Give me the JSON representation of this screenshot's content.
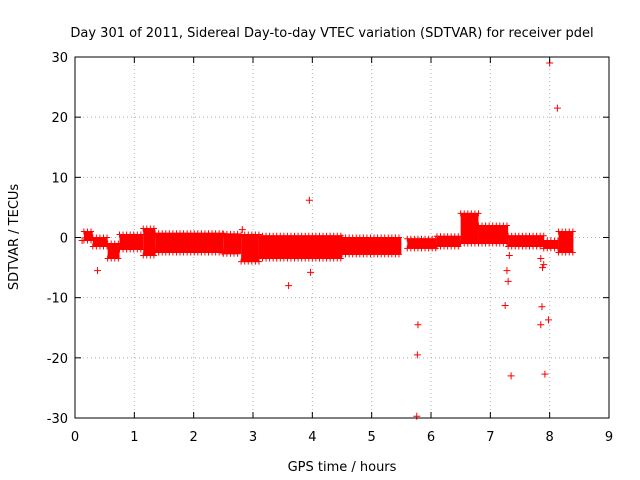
{
  "chart_data": {
    "type": "scatter",
    "title": "Day 301 of 2011, Sidereal Day-to-day VTEC variation (SDTVAR) for receiver pdel",
    "xlabel": "GPS time / hours",
    "ylabel": "SDTVAR / TECUs",
    "xlim": [
      0,
      9
    ],
    "ylim": [
      -30,
      30
    ],
    "x_ticks": [
      0,
      1,
      2,
      3,
      4,
      5,
      6,
      7,
      8,
      9
    ],
    "y_ticks": [
      -30,
      -20,
      -10,
      0,
      10,
      20,
      30
    ],
    "x_tick_labels": [
      "0",
      "1",
      "2",
      "3",
      "4",
      "5",
      "6",
      "7",
      "8",
      "9"
    ],
    "y_tick_labels": [
      "-30",
      "-20",
      "-10",
      "0",
      "10",
      "20",
      "30"
    ],
    "grid": true,
    "marker": "+",
    "color": "#ff0000",
    "dense_band_segments": [
      {
        "x_start": 0.15,
        "x_end": 0.3,
        "y_low": -0.5,
        "y_high": 1.0
      },
      {
        "x_start": 0.3,
        "x_end": 0.55,
        "y_low": -1.5,
        "y_high": 0.0
      },
      {
        "x_start": 0.55,
        "x_end": 0.75,
        "y_low": -3.5,
        "y_high": -1.0
      },
      {
        "x_start": 0.75,
        "x_end": 1.15,
        "y_low": -2.0,
        "y_high": 0.5
      },
      {
        "x_start": 1.15,
        "x_end": 1.35,
        "y_low": -3.0,
        "y_high": 1.5
      },
      {
        "x_start": 1.35,
        "x_end": 2.5,
        "y_low": -2.5,
        "y_high": 0.7
      },
      {
        "x_start": 2.5,
        "x_end": 2.8,
        "y_low": -2.7,
        "y_high": 0.6
      },
      {
        "x_start": 2.8,
        "x_end": 3.1,
        "y_low": -4.0,
        "y_high": 0.5
      },
      {
        "x_start": 3.1,
        "x_end": 4.5,
        "y_low": -3.5,
        "y_high": 0.3
      },
      {
        "x_start": 4.5,
        "x_end": 5.5,
        "y_low": -2.8,
        "y_high": 0.0
      },
      {
        "x_start": 5.6,
        "x_end": 6.1,
        "y_low": -1.8,
        "y_high": -0.2
      },
      {
        "x_start": 6.1,
        "x_end": 6.5,
        "y_low": -1.5,
        "y_high": 0.2
      },
      {
        "x_start": 6.5,
        "x_end": 6.8,
        "y_low": -1.0,
        "y_high": 4.0
      },
      {
        "x_start": 6.8,
        "x_end": 7.3,
        "y_low": -1.0,
        "y_high": 2.0
      },
      {
        "x_start": 7.3,
        "x_end": 7.9,
        "y_low": -1.5,
        "y_high": 0.3
      },
      {
        "x_start": 7.9,
        "x_end": 8.15,
        "y_low": -1.8,
        "y_high": -0.5
      },
      {
        "x_start": 8.15,
        "x_end": 8.4,
        "y_low": -2.5,
        "y_high": 1.0
      }
    ],
    "outliers": [
      {
        "x": 0.12,
        "y": -0.5
      },
      {
        "x": 0.38,
        "y": -5.5
      },
      {
        "x": 2.82,
        "y": 1.3
      },
      {
        "x": 3.6,
        "y": -8.0
      },
      {
        "x": 3.95,
        "y": 6.2
      },
      {
        "x": 3.97,
        "y": -5.8
      },
      {
        "x": 5.78,
        "y": -14.5
      },
      {
        "x": 5.77,
        "y": -19.5
      },
      {
        "x": 5.76,
        "y": -29.7
      },
      {
        "x": 7.25,
        "y": -11.3
      },
      {
        "x": 7.28,
        "y": -5.5
      },
      {
        "x": 7.3,
        "y": -7.3
      },
      {
        "x": 7.32,
        "y": -3.0
      },
      {
        "x": 7.35,
        "y": -23.0
      },
      {
        "x": 7.85,
        "y": -3.5
      },
      {
        "x": 7.88,
        "y": -5.0
      },
      {
        "x": 7.9,
        "y": -4.5
      },
      {
        "x": 7.87,
        "y": -11.5
      },
      {
        "x": 7.85,
        "y": -14.5
      },
      {
        "x": 7.92,
        "y": -22.7
      },
      {
        "x": 7.98,
        "y": -13.7
      },
      {
        "x": 8.0,
        "y": 29.0
      },
      {
        "x": 8.13,
        "y": 21.5
      },
      {
        "x": 7.82,
        "y": -1.0
      }
    ]
  }
}
